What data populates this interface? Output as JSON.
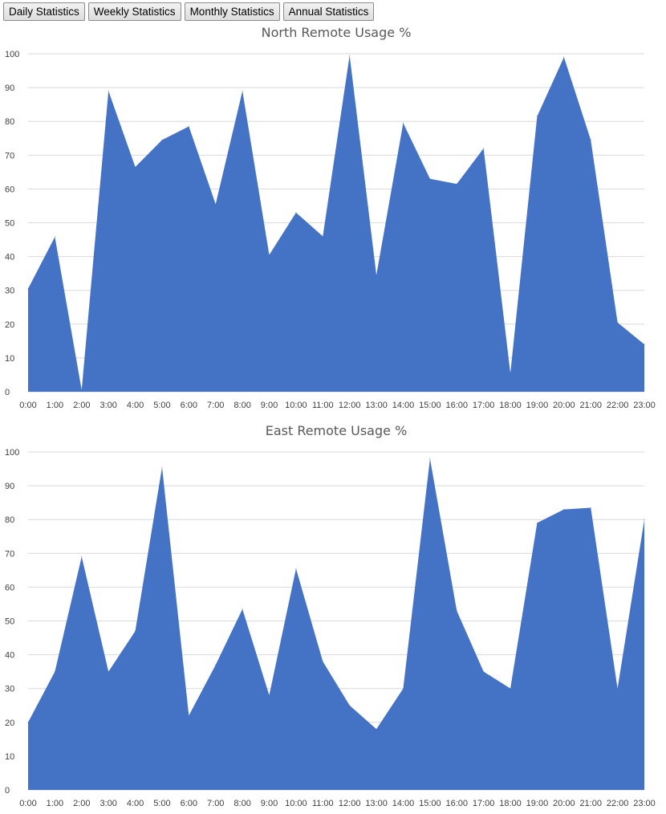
{
  "toolbar": {
    "daily_label": "Daily Statistics",
    "weekly_label": "Weekly Statistics",
    "monthly_label": "Monthly Statistics",
    "annual_label": "Annual Statistics"
  },
  "colors": {
    "area_fill": "#4472c4",
    "grid": "#d9d9d9"
  },
  "chart_data": [
    {
      "type": "area",
      "title": "North Remote Usage %",
      "xlabel": "",
      "ylabel": "",
      "ylim": [
        0,
        100
      ],
      "yticks": [
        0,
        10,
        20,
        30,
        40,
        50,
        60,
        70,
        80,
        90,
        100
      ],
      "grid": true,
      "categories": [
        "0:00",
        "1:00",
        "2:00",
        "3:00",
        "4:00",
        "5:00",
        "6:00",
        "7:00",
        "8:00",
        "9:00",
        "10:00",
        "11:00",
        "12:00",
        "13:00",
        "14:00",
        "15:00",
        "16:00",
        "17:00",
        "18:00",
        "19:00",
        "20:00",
        "21:00",
        "22:00",
        "23:00"
      ],
      "values": [
        30.5,
        45.8,
        0.5,
        89,
        66.5,
        74.5,
        78.5,
        55.5,
        89,
        40.5,
        53,
        46,
        99.5,
        34.5,
        79.5,
        63,
        61.5,
        72,
        5.5,
        81.5,
        99,
        74.5,
        20.5,
        14
      ]
    },
    {
      "type": "area",
      "title": "East Remote Usage %",
      "xlabel": "",
      "ylabel": "",
      "ylim": [
        0,
        100
      ],
      "yticks": [
        0,
        10,
        20,
        30,
        40,
        50,
        60,
        70,
        80,
        90,
        100
      ],
      "grid": true,
      "categories": [
        "0:00",
        "1:00",
        "2:00",
        "3:00",
        "4:00",
        "5:00",
        "6:00",
        "7:00",
        "8:00",
        "9:00",
        "10:00",
        "11:00",
        "12:00",
        "13:00",
        "14:00",
        "15:00",
        "16:00",
        "17:00",
        "18:00",
        "19:00",
        "20:00",
        "21:00",
        "22:00",
        "23:00"
      ],
      "values": [
        20,
        35,
        69,
        35,
        47,
        95.5,
        22,
        37,
        53.5,
        28,
        65.5,
        38,
        25,
        18,
        30,
        98,
        53,
        35,
        30,
        79,
        83,
        83.5,
        30,
        80
      ]
    }
  ]
}
